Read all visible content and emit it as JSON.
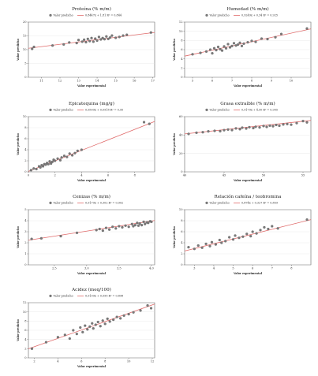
{
  "colors": {
    "point": "#7a7a7a",
    "fit": "#e06a6a"
  },
  "chart_data": [
    {
      "type": "scatter",
      "title": "Proteína (% m/m)",
      "xlabel": "Valor experimental",
      "ylabel": "Valor predicho",
      "legend": {
        "points": "Valor predicho",
        "fit": "0,8447x + 1,81 R² = 0,844"
      },
      "xlim": [
        10.3,
        17.1
      ],
      "ylim": [
        0,
        20
      ],
      "xticks": [
        11,
        12,
        13,
        14,
        15,
        16,
        17
      ],
      "yticks": [
        0,
        5,
        10,
        15,
        20
      ],
      "fit": {
        "slope": 0.8447,
        "intercept": 1.81
      },
      "x": [
        10.5,
        10.6,
        11.6,
        12.2,
        12.5,
        12.9,
        13.0,
        13.2,
        13.3,
        13.4,
        13.5,
        13.6,
        13.7,
        13.8,
        13.9,
        14.0,
        14.1,
        14.2,
        14.3,
        14.4,
        14.5,
        14.6,
        14.7,
        14.8,
        15.0,
        15.2,
        15.4,
        15.6,
        16.9
      ],
      "y": [
        10.3,
        11.0,
        11.5,
        11.9,
        12.6,
        12.4,
        13.5,
        12.9,
        13.6,
        12.7,
        13.9,
        13.1,
        14.2,
        12.9,
        14.0,
        13.3,
        14.6,
        13.7,
        14.2,
        13.8,
        14.8,
        13.9,
        14.4,
        15.1,
        14.3,
        14.6,
        15.1,
        15.4,
        16.2
      ]
    },
    {
      "type": "scatter",
      "title": "Humedad (% m/m)",
      "xlabel": "Valor experimental",
      "ylabel": "Valor predicho",
      "legend": {
        "points": "Valor predicho",
        "fit": "0,9249x + 0,34 R² = 0,925"
      },
      "xlim": [
        4.6,
        11.0
      ],
      "ylim": [
        0,
        12
      ],
      "xticks": [
        5,
        6,
        7,
        8,
        9,
        10
      ],
      "yticks": [
        0,
        2,
        4,
        6,
        8,
        10,
        12
      ],
      "fit": {
        "slope": 0.9249,
        "intercept": 0.34
      },
      "x": [
        5.0,
        5.4,
        5.7,
        5.9,
        6.0,
        6.1,
        6.2,
        6.3,
        6.4,
        6.5,
        6.6,
        6.7,
        6.8,
        6.9,
        7.0,
        7.1,
        7.2,
        7.3,
        7.4,
        7.5,
        7.6,
        7.8,
        8.0,
        8.2,
        8.5,
        8.8,
        9.2,
        9.5,
        10.8
      ],
      "y": [
        5.0,
        5.3,
        5.6,
        6.0,
        5.2,
        6.3,
        5.9,
        6.6,
        6.1,
        5.8,
        6.7,
        6.3,
        7.2,
        6.5,
        6.8,
        7.4,
        6.9,
        7.1,
        7.5,
        6.8,
        7.3,
        7.6,
        7.9,
        7.7,
        8.4,
        8.3,
        8.7,
        9.4,
        10.6
      ]
    },
    {
      "type": "scatter",
      "title": "Epicatequina (mg/g)",
      "xlabel": "Valor experimental",
      "ylabel": "Valor predicho",
      "legend": {
        "points": "Valor predicho",
        "fit": "0,9509x + 0,0918 R² = 0,95"
      },
      "xlim": [
        0,
        9.5
      ],
      "ylim": [
        0,
        10
      ],
      "xticks": [
        0,
        2,
        4,
        6,
        8
      ],
      "yticks": [
        0,
        2,
        4,
        6,
        8,
        10
      ],
      "fit": {
        "slope": 0.9509,
        "intercept": 0.0918
      },
      "x": [
        0.2,
        0.4,
        0.6,
        0.8,
        0.9,
        1.0,
        1.1,
        1.2,
        1.3,
        1.4,
        1.5,
        1.6,
        1.7,
        1.8,
        1.9,
        2.0,
        2.2,
        2.4,
        2.5,
        2.7,
        2.9,
        3.1,
        3.3,
        3.5,
        3.7,
        4.0,
        8.7,
        9.1
      ],
      "y": [
        0.3,
        0.6,
        0.5,
        1.0,
        0.8,
        1.2,
        1.0,
        1.4,
        1.3,
        1.6,
        1.4,
        1.9,
        1.5,
        1.8,
        2.2,
        2.0,
        2.4,
        2.1,
        2.6,
        2.9,
        2.7,
        3.3,
        3.0,
        3.4,
        3.8,
        4.0,
        9.0,
        8.7
      ]
    },
    {
      "type": "scatter",
      "title": "Grasa extraíble (% m/m)",
      "xlabel": "Valor experimental",
      "ylabel": "Valor predicho",
      "legend": {
        "points": "Valor predicho",
        "fit": "0,9179x + 4,50 R² = 0,905"
      },
      "xlim": [
        40,
        56
      ],
      "ylim": [
        0,
        60
      ],
      "xticks": [
        40,
        45,
        50,
        55
      ],
      "yticks": [
        0,
        20,
        40,
        60
      ],
      "fit": {
        "slope": 0.9179,
        "intercept": 4.5
      },
      "x": [
        40.5,
        41.5,
        42.3,
        43.0,
        43.8,
        44.5,
        45.0,
        45.5,
        46.0,
        46.5,
        47.0,
        47.3,
        47.8,
        48.2,
        48.7,
        49.0,
        49.5,
        50.0,
        50.4,
        50.8,
        51.2,
        51.6,
        52.0,
        52.5,
        53.0,
        53.5,
        54.2,
        55.0,
        55.5
      ],
      "y": [
        41.2,
        42.5,
        43.1,
        44.0,
        44.6,
        44.2,
        45.3,
        46.0,
        45.4,
        47.2,
        46.4,
        48.0,
        47.1,
        48.5,
        47.6,
        49.0,
        48.3,
        49.8,
        48.9,
        50.2,
        49.6,
        51.0,
        50.1,
        51.5,
        52.0,
        51.3,
        53.0,
        55.2,
        53.8
      ]
    },
    {
      "type": "scatter",
      "title": "Cenizas (% m/m)",
      "xlabel": "Valor experimental",
      "ylabel": "Valor predicho",
      "legend": {
        "points": "Valor predicho",
        "fit": "0,9179x + 0,302 R² = 0,902"
      },
      "xlim": [
        2.1,
        4.05
      ],
      "ylim": [
        0,
        5
      ],
      "xticks": [
        2.5,
        3,
        3.5,
        4
      ],
      "xtick_labels": [
        "2,5",
        "3,0",
        "3,5",
        "4,0"
      ],
      "yticks": [
        0,
        1,
        2,
        3,
        4,
        5
      ],
      "fit": {
        "slope": 0.9179,
        "intercept": 0.302
      },
      "x": [
        2.15,
        2.3,
        2.6,
        2.85,
        3.15,
        3.2,
        3.25,
        3.3,
        3.35,
        3.4,
        3.45,
        3.5,
        3.55,
        3.6,
        3.65,
        3.7,
        3.72,
        3.75,
        3.78,
        3.8,
        3.82,
        3.85,
        3.88,
        3.9,
        3.93,
        3.95,
        3.98,
        4.0
      ],
      "y": [
        2.35,
        2.4,
        2.6,
        2.9,
        3.15,
        3.25,
        3.1,
        3.35,
        3.2,
        3.45,
        3.3,
        3.5,
        3.4,
        3.55,
        3.45,
        3.7,
        3.5,
        3.6,
        3.8,
        3.55,
        3.75,
        3.6,
        3.9,
        3.7,
        3.85,
        3.8,
        3.95,
        3.9
      ]
    },
    {
      "type": "scatter",
      "title": "Relación cafeína / teobromina",
      "xlabel": "Valor experimental",
      "ylabel": "Valor predicho",
      "legend": {
        "points": "Valor predicho",
        "fit": "0,874x + 0,327 R² = 0,859"
      },
      "xlim": [
        2.5,
        9.0
      ],
      "ylim": [
        0,
        10
      ],
      "xticks": [
        3,
        4,
        5,
        6,
        7,
        8
      ],
      "yticks": [
        0,
        2,
        4,
        6,
        8,
        10
      ],
      "fit": {
        "slope": 0.874,
        "intercept": 0.327
      },
      "x": [
        2.7,
        3.0,
        3.2,
        3.4,
        3.6,
        3.8,
        3.9,
        4.1,
        4.3,
        4.4,
        4.6,
        4.8,
        5.0,
        5.1,
        5.3,
        5.5,
        5.7,
        5.9,
        6.0,
        6.2,
        6.4,
        6.6,
        6.8,
        7.0,
        7.3,
        8.8
      ],
      "y": [
        3.2,
        2.9,
        3.5,
        3.1,
        3.8,
        3.4,
        4.1,
        3.7,
        4.5,
        4.0,
        4.3,
        5.0,
        4.6,
        5.3,
        4.9,
        5.1,
        5.6,
        5.2,
        6.0,
        5.7,
        6.3,
        6.8,
        6.5,
        7.0,
        6.6,
        8.2
      ]
    },
    {
      "type": "scatter",
      "title": "Acidez (meq/100)",
      "xlabel": "Valor experimental",
      "ylabel": "Valor predicho",
      "legend": {
        "points": "Valor predicho",
        "fit": "0,9109x + 0,595 R² = 0,898"
      },
      "xlim": [
        1.5,
        12.2
      ],
      "ylim": [
        0,
        12
      ],
      "xticks": [
        2,
        4,
        6,
        8,
        10,
        12
      ],
      "yticks": [
        0,
        2,
        4,
        6,
        8,
        10,
        12
      ],
      "fit": {
        "slope": 0.9109,
        "intercept": 0.595
      },
      "x": [
        1.8,
        3.0,
        4.0,
        4.6,
        5.0,
        5.3,
        5.6,
        5.9,
        6.1,
        6.3,
        6.5,
        6.7,
        6.9,
        7.0,
        7.2,
        7.4,
        7.6,
        7.8,
        8.0,
        8.2,
        8.4,
        8.7,
        9.0,
        9.3,
        9.6,
        10.0,
        10.4,
        11.0,
        11.6,
        11.9
      ],
      "y": [
        2.0,
        3.4,
        4.5,
        5.0,
        4.2,
        6.0,
        5.2,
        6.6,
        5.6,
        7.0,
        6.2,
        6.8,
        7.5,
        6.4,
        7.2,
        7.8,
        6.9,
        8.1,
        7.4,
        8.5,
        7.9,
        8.3,
        8.9,
        8.6,
        9.2,
        9.5,
        9.9,
        10.3,
        11.4,
        10.8
      ]
    }
  ]
}
